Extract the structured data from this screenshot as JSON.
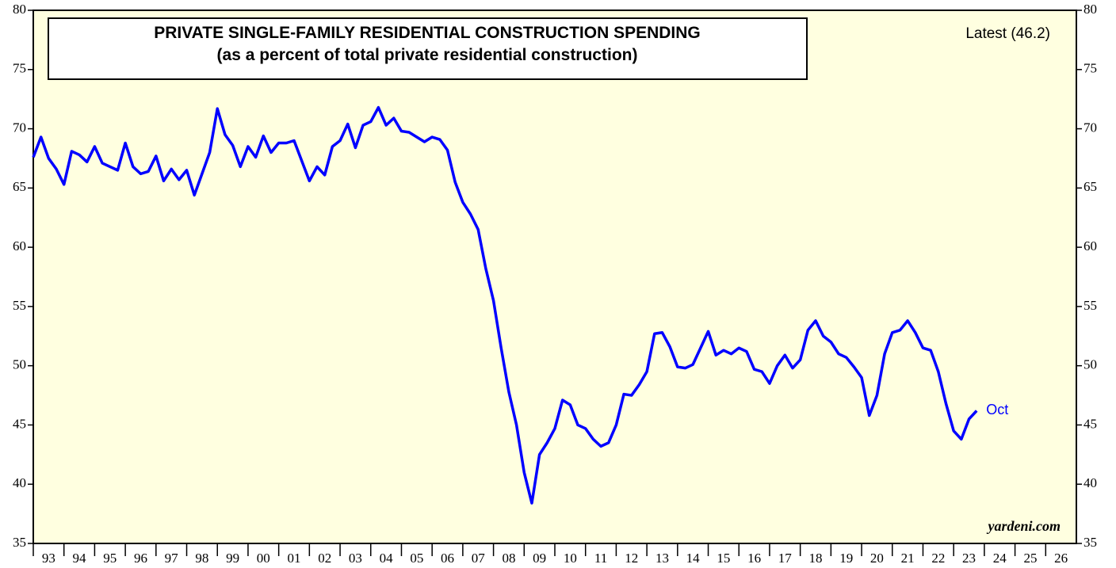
{
  "chart_data": {
    "type": "line",
    "title": "PRIVATE SINGLE-FAMILY RESIDENTIAL CONSTRUCTION SPENDING",
    "subtitle": "(as a percent of total private residential construction)",
    "annotations": [
      "Latest (46.2)",
      "Oct",
      "yardeni.com"
    ],
    "color": "#0000ff",
    "x": [
      1993.0,
      1993.25,
      1993.5,
      1993.75,
      1994.0,
      1994.25,
      1994.5,
      1994.75,
      1995.0,
      1995.25,
      1995.5,
      1995.75,
      1996.0,
      1996.25,
      1996.5,
      1996.75,
      1997.0,
      1997.25,
      1997.5,
      1997.75,
      1998.0,
      1998.25,
      1998.5,
      1998.75,
      1999.0,
      1999.25,
      1999.5,
      1999.75,
      2000.0,
      2000.25,
      2000.5,
      2000.75,
      2001.0,
      2001.25,
      2001.5,
      2001.75,
      2002.0,
      2002.25,
      2002.5,
      2002.75,
      2003.0,
      2003.25,
      2003.5,
      2003.75,
      2004.0,
      2004.25,
      2004.5,
      2004.75,
      2005.0,
      2005.25,
      2005.5,
      2005.75,
      2006.0,
      2006.25,
      2006.5,
      2006.75,
      2007.0,
      2007.25,
      2007.5,
      2007.75,
      2008.0,
      2008.25,
      2008.5,
      2008.75,
      2009.0,
      2009.25,
      2009.5,
      2009.75,
      2010.0,
      2010.25,
      2010.5,
      2010.75,
      2011.0,
      2011.25,
      2011.5,
      2011.75,
      2012.0,
      2012.25,
      2012.5,
      2012.75,
      2013.0,
      2013.25,
      2013.5,
      2013.75,
      2014.0,
      2014.25,
      2014.5,
      2014.75,
      2015.0,
      2015.25,
      2015.5,
      2015.75,
      2016.0,
      2016.25,
      2016.5,
      2016.75,
      2017.0,
      2017.25,
      2017.5,
      2017.75,
      2018.0,
      2018.25,
      2018.5,
      2018.75,
      2019.0,
      2019.25,
      2019.5,
      2019.75,
      2020.0,
      2020.25,
      2020.5,
      2020.75,
      2021.0,
      2021.25,
      2021.5,
      2021.75,
      2022.0,
      2022.25,
      2022.5,
      2022.75,
      2023.0,
      2023.25,
      2023.5,
      2023.75
    ],
    "values": [
      67.6,
      69.3,
      67.5,
      66.6,
      65.3,
      68.1,
      67.8,
      67.2,
      68.5,
      67.1,
      66.8,
      66.5,
      68.8,
      66.8,
      66.2,
      66.4,
      67.7,
      65.6,
      66.6,
      65.7,
      66.5,
      64.4,
      66.2,
      68.0,
      71.7,
      69.5,
      68.6,
      66.8,
      68.5,
      67.6,
      69.4,
      68.0,
      68.8,
      68.8,
      69.0,
      67.3,
      65.6,
      66.8,
      66.1,
      68.5,
      69.0,
      70.4,
      68.4,
      70.3,
      70.6,
      71.8,
      70.3,
      70.9,
      69.8,
      69.7,
      69.3,
      68.9,
      69.3,
      69.1,
      68.2,
      65.5,
      63.8,
      62.8,
      61.5,
      58.2,
      55.5,
      51.5,
      47.8,
      45.0,
      41.0,
      38.4,
      42.5,
      43.5,
      44.7,
      47.1,
      46.7,
      45.0,
      44.7,
      43.8,
      43.2,
      43.5,
      45.0,
      47.6,
      47.5,
      48.4,
      49.5,
      52.7,
      52.8,
      51.6,
      49.9,
      49.8,
      50.1,
      51.5,
      52.9,
      50.9,
      51.3,
      51.0,
      51.5,
      51.2,
      49.7,
      49.5,
      48.5,
      50.0,
      50.9,
      49.8,
      50.5,
      53.0,
      53.8,
      52.5,
      52.0,
      51.0,
      50.7,
      49.9,
      49.0,
      45.8,
      47.5,
      51.0,
      52.8,
      53.0,
      53.8,
      52.8,
      51.5,
      51.3,
      49.5,
      46.8,
      44.5,
      43.8,
      45.5,
      46.2
    ],
    "xlim": [
      1993,
      2027
    ],
    "xticks": [
      {
        "value": 1993,
        "label": "93"
      },
      {
        "value": 1994,
        "label": "94"
      },
      {
        "value": 1995,
        "label": "95"
      },
      {
        "value": 1996,
        "label": "96"
      },
      {
        "value": 1997,
        "label": "97"
      },
      {
        "value": 1998,
        "label": "98"
      },
      {
        "value": 1999,
        "label": "99"
      },
      {
        "value": 2000,
        "label": "00"
      },
      {
        "value": 2001,
        "label": "01"
      },
      {
        "value": 2002,
        "label": "02"
      },
      {
        "value": 2003,
        "label": "03"
      },
      {
        "value": 2004,
        "label": "04"
      },
      {
        "value": 2005,
        "label": "05"
      },
      {
        "value": 2006,
        "label": "06"
      },
      {
        "value": 2007,
        "label": "07"
      },
      {
        "value": 2008,
        "label": "08"
      },
      {
        "value": 2009,
        "label": "09"
      },
      {
        "value": 2010,
        "label": "10"
      },
      {
        "value": 2011,
        "label": "11"
      },
      {
        "value": 2012,
        "label": "12"
      },
      {
        "value": 2013,
        "label": "13"
      },
      {
        "value": 2014,
        "label": "14"
      },
      {
        "value": 2015,
        "label": "15"
      },
      {
        "value": 2016,
        "label": "16"
      },
      {
        "value": 2017,
        "label": "17"
      },
      {
        "value": 2018,
        "label": "18"
      },
      {
        "value": 2019,
        "label": "19"
      },
      {
        "value": 2020,
        "label": "20"
      },
      {
        "value": 2021,
        "label": "21"
      },
      {
        "value": 2022,
        "label": "22"
      },
      {
        "value": 2023,
        "label": "23"
      },
      {
        "value": 2024,
        "label": "24"
      },
      {
        "value": 2025,
        "label": "25"
      },
      {
        "value": 2026,
        "label": "26"
      }
    ],
    "ylim": [
      35,
      80
    ],
    "yticks": [
      35,
      40,
      45,
      50,
      55,
      60,
      65,
      70,
      75,
      80
    ]
  }
}
